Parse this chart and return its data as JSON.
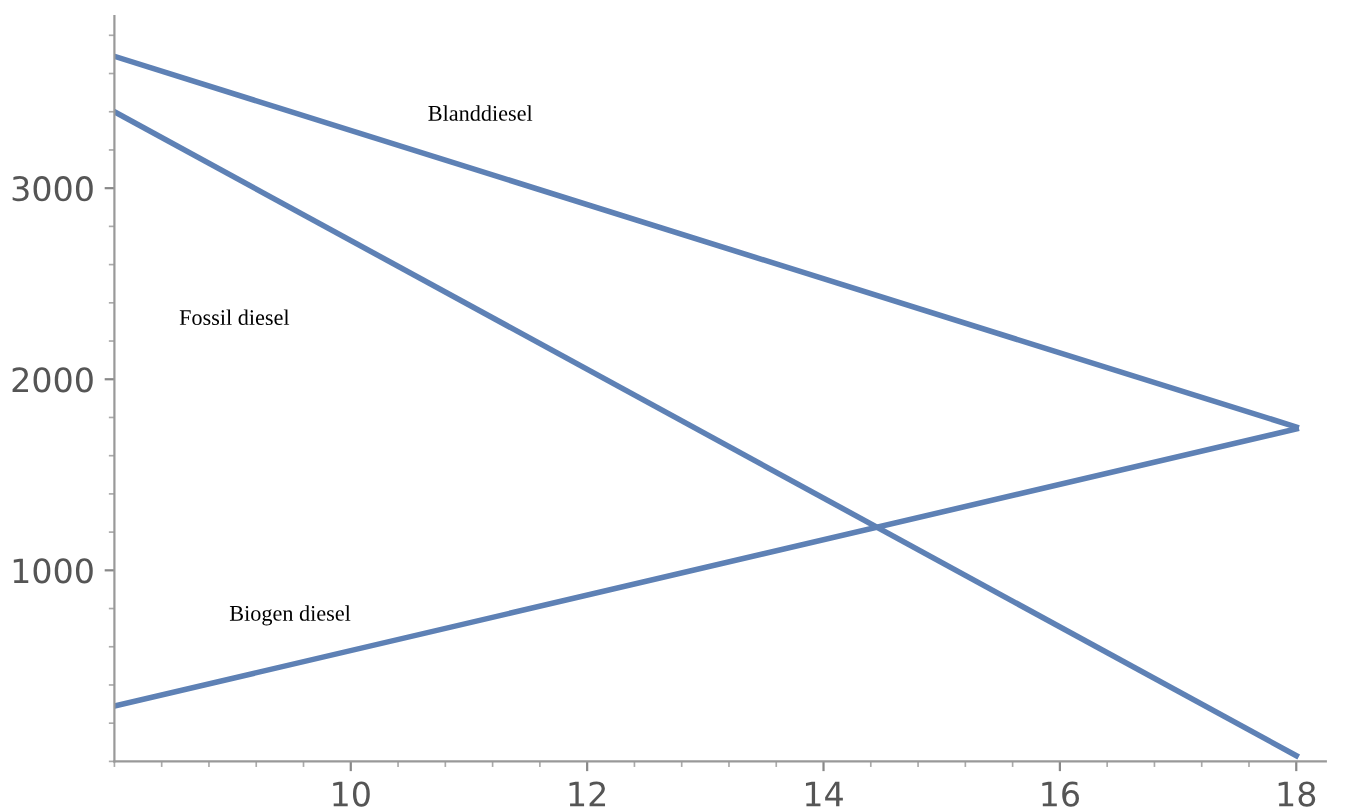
{
  "chart_data": {
    "type": "line",
    "x": [
      8,
      18
    ],
    "xlim": [
      8,
      18.25
    ],
    "ylim": [
      0,
      3900
    ],
    "xticks": [
      10,
      12,
      14,
      16,
      18
    ],
    "yticks": [
      1000,
      2000,
      3000
    ],
    "grid": false,
    "marker": "none",
    "line_style": "solid",
    "series": [
      {
        "color": "#5e81b5",
        "values": [
          3690,
          1750
        ]
      },
      {
        "color": "#5e81b5",
        "values": [
          3400,
          30
        ]
      },
      {
        "color": "#5e81b5",
        "values": [
          290,
          1740
        ]
      }
    ],
    "annotations": [
      "Blanddiesel",
      "Fossil diesel",
      "Biogen diesel"
    ]
  }
}
